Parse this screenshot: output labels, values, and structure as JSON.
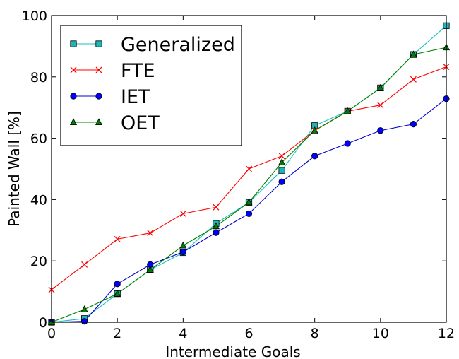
{
  "chart_data": {
    "type": "line",
    "title": "",
    "xlabel": "Intermediate Goals",
    "ylabel": "Painted Wall [%]",
    "xlim": [
      0,
      12
    ],
    "ylim": [
      0,
      100
    ],
    "xticks": [
      0,
      2,
      4,
      6,
      8,
      10,
      12
    ],
    "yticks": [
      0,
      20,
      40,
      60,
      80,
      100
    ],
    "grid": false,
    "legend_position": "top-left",
    "x": [
      0,
      1,
      2,
      3,
      4,
      5,
      6,
      7,
      8,
      9,
      10,
      11,
      12
    ],
    "series": [
      {
        "name": "Generalized",
        "color": "#17bfbf",
        "marker": "square",
        "marker_fill": "#1fb5b5",
        "values": [
          0,
          1.2,
          9.3,
          17.1,
          22.7,
          32.2,
          39.1,
          49.5,
          64.1,
          68.8,
          76.4,
          87.3,
          96.7
        ]
      },
      {
        "name": "FTE",
        "color": "#ff0000",
        "marker": "x",
        "marker_fill": "#ff0000",
        "values": [
          10.6,
          18.8,
          27.1,
          29.1,
          35.4,
          37.5,
          50.0,
          54.2,
          62.5,
          68.8,
          70.8,
          79.2,
          83.3
        ]
      },
      {
        "name": "IET",
        "color": "#0000cc",
        "marker": "circle",
        "marker_fill": "#0000ff",
        "values": [
          0,
          0.3,
          12.5,
          18.8,
          22.9,
          29.2,
          35.4,
          45.8,
          54.2,
          58.3,
          62.5,
          64.6,
          72.9
        ]
      },
      {
        "name": "OET",
        "color": "#008000",
        "marker": "triangle",
        "marker_fill": "#008000",
        "values": [
          0,
          4.2,
          9.3,
          17.1,
          25.0,
          31.3,
          39.1,
          52.1,
          62.5,
          68.8,
          76.4,
          87.3,
          89.6
        ]
      }
    ]
  }
}
